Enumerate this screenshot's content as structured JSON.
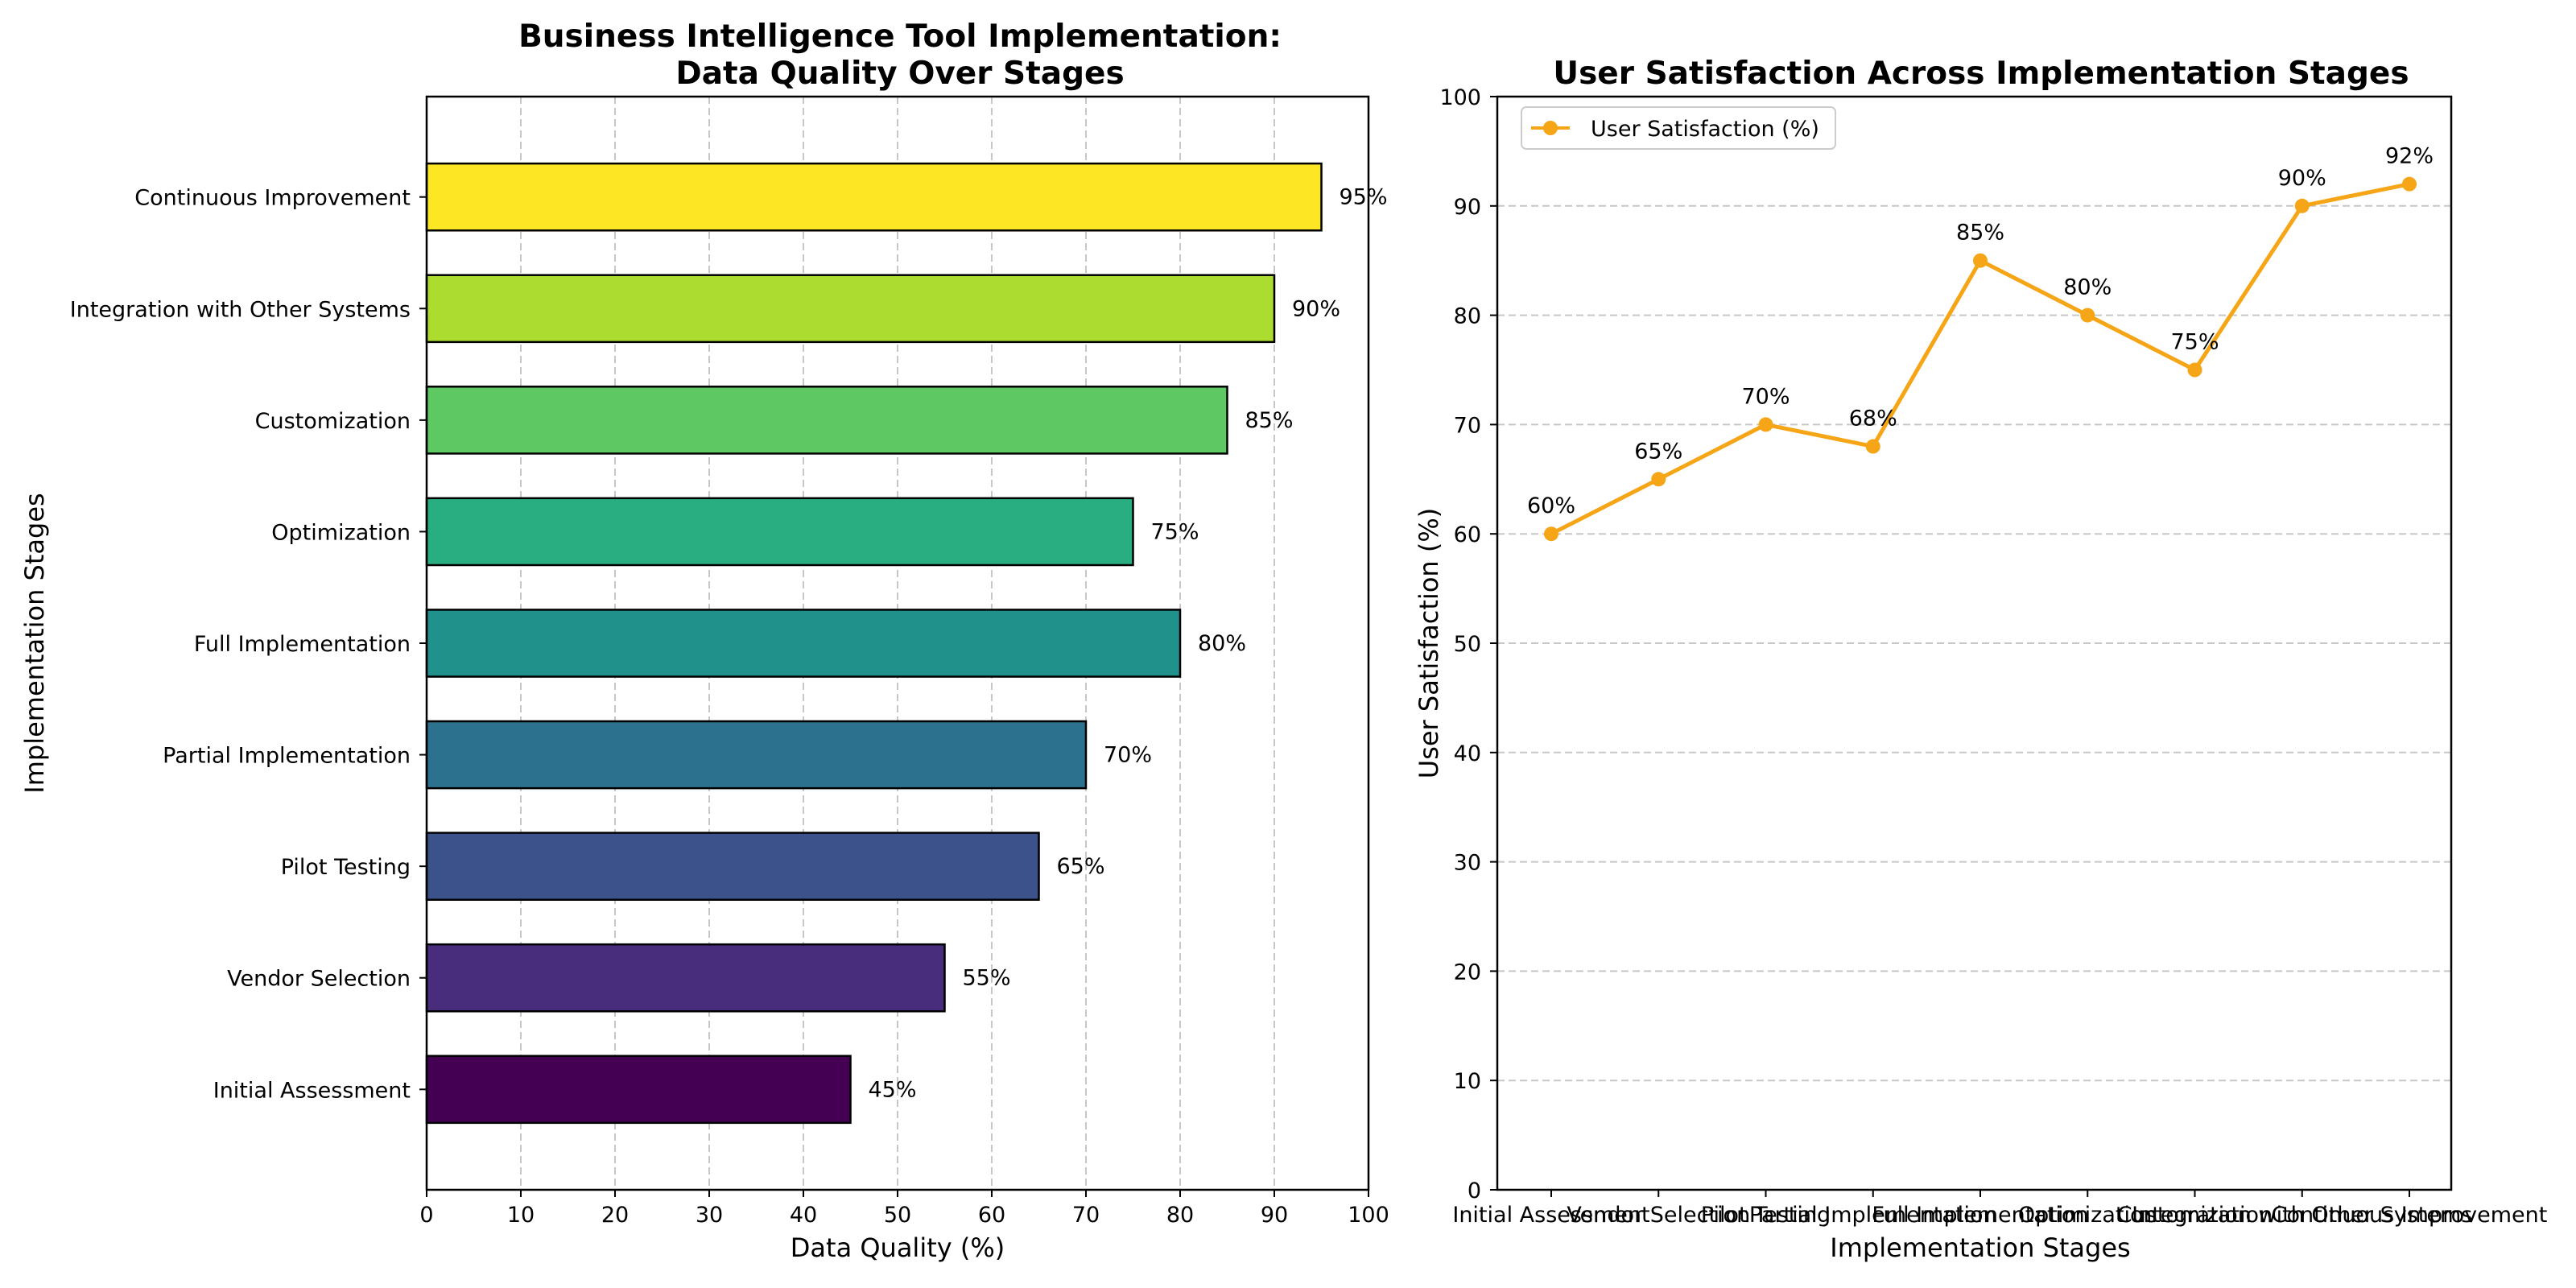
{
  "colors": {
    "line_series": "#f5a516",
    "bar_edge": "#000000",
    "grid": "#b0b0b0"
  },
  "chart_data": [
    {
      "type": "bar",
      "orientation": "horizontal",
      "title_lines": [
        "Business Intelligence Tool Implementation:",
        "Data Quality Over Stages"
      ],
      "xlabel": "Data Quality (%)",
      "ylabel": "Implementation Stages",
      "xlim": [
        0,
        100
      ],
      "x_ticks": [
        0,
        10,
        20,
        30,
        40,
        50,
        60,
        70,
        80,
        90,
        100
      ],
      "x_tick_labels": [
        "0",
        "10",
        "20",
        "30",
        "40",
        "50",
        "60",
        "70",
        "80",
        "90",
        "100"
      ],
      "grid": "x-axis, dashed",
      "categories": [
        "Initial Assessment",
        "Vendor Selection",
        "Pilot Testing",
        "Partial Implementation",
        "Full Implementation",
        "Optimization",
        "Customization",
        "Integration with Other Systems",
        "Continuous Improvement"
      ],
      "values": [
        45,
        55,
        65,
        70,
        80,
        75,
        85,
        90,
        95
      ],
      "value_labels": [
        "45%",
        "55%",
        "65%",
        "70%",
        "80%",
        "75%",
        "85%",
        "90%",
        "95%"
      ],
      "bar_colors": [
        "#440154",
        "#472d7b",
        "#3b528b",
        "#2c728e",
        "#21918c",
        "#28ae80",
        "#5ec962",
        "#addc30",
        "#fde725"
      ]
    },
    {
      "type": "line",
      "title": "User Satisfaction Across Implementation Stages",
      "xlabel": "Implementation Stages",
      "ylabel": "User Satisfaction (%)",
      "ylim": [
        0,
        100
      ],
      "y_ticks": [
        0,
        10,
        20,
        30,
        40,
        50,
        60,
        70,
        80,
        90,
        100
      ],
      "y_tick_labels": [
        "0",
        "10",
        "20",
        "30",
        "40",
        "50",
        "60",
        "70",
        "80",
        "90",
        "100"
      ],
      "grid": "y-axis, dashed",
      "legend_position": "top-left",
      "x": [
        "Initial Assessment",
        "Vendor Selection",
        "Pilot Testing",
        "Partial Implementation",
        "Full Implementation",
        "Optimization",
        "Customization",
        "Integration with Other Systems",
        "Continuous Improvement"
      ],
      "series": [
        {
          "name": "User Satisfaction (%)",
          "values": [
            60,
            65,
            70,
            68,
            85,
            80,
            75,
            90,
            92
          ],
          "value_labels": [
            "60%",
            "65%",
            "70%",
            "68%",
            "85%",
            "80%",
            "75%",
            "90%",
            "92%"
          ]
        }
      ]
    }
  ]
}
